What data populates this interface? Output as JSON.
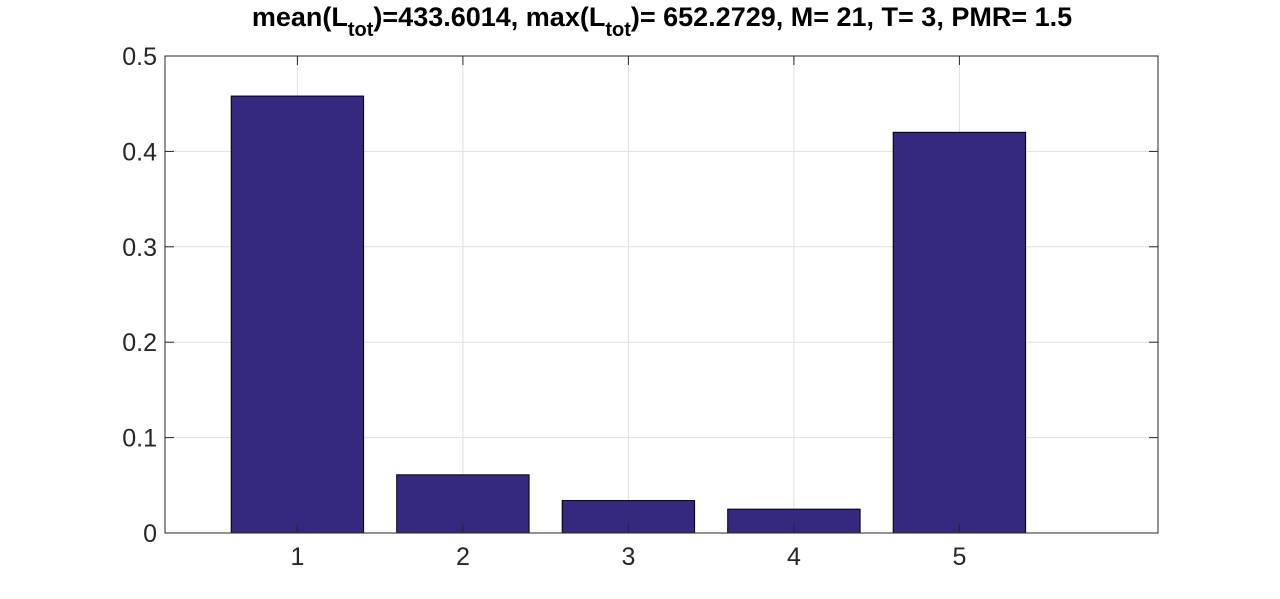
{
  "chart_data": {
    "type": "bar",
    "title": {
      "part1": "mean(L",
      "sub1": "tot",
      "part2": ")=433.6014, max(L",
      "sub2": "tot",
      "part3": ")= 652.2729, M= 21, T= 3, PMR= 1.5"
    },
    "xlabel": "",
    "ylabel": "",
    "categories": [
      "1",
      "2",
      "3",
      "4",
      "5"
    ],
    "values": [
      0.458,
      0.061,
      0.034,
      0.025,
      0.42
    ],
    "xlim": [
      0.2,
      6.2
    ],
    "ylim": [
      0,
      0.5
    ],
    "yticks": [
      0,
      0.1,
      0.2,
      0.3,
      0.4,
      0.5
    ],
    "ytick_labels": [
      "0",
      "0.1",
      "0.2",
      "0.3",
      "0.4",
      "0.5"
    ],
    "grid": true,
    "colors": {
      "bar_fill": "#35287f",
      "bar_edge": "#000000",
      "grid": "#e0e0e0",
      "axis": "#262626"
    }
  }
}
